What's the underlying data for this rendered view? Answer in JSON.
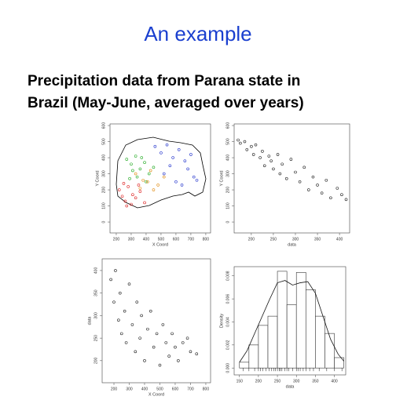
{
  "slide": {
    "title": "An example",
    "subtitle": [
      "Precipitation data from Parana state in",
      "Brazil (May-June, averaged over years)"
    ]
  },
  "chart_data": [
    {
      "type": "scatter",
      "xlabel": "X Coord",
      "ylabel": "Y Coord",
      "xlim": [
        158,
        832
      ],
      "ylim": [
        -68,
        610
      ],
      "xticks": [
        200,
        300,
        400,
        500,
        600,
        700,
        800
      ],
      "yticks": [
        0,
        100,
        200,
        300,
        400,
        500,
        600
      ],
      "series": [
        {
          "color": "#22aa22",
          "x": [
            270,
            300,
            330,
            360,
            390,
            420,
            450,
            290,
            340,
            400,
            310,
            370
          ],
          "y": [
            390,
            360,
            410,
            330,
            370,
            300,
            340,
            270,
            280,
            250,
            320,
            400
          ]
        },
        {
          "color": "#dd2222",
          "x": [
            220,
            240,
            260,
            280,
            300,
            330,
            360,
            390,
            250,
            310,
            270,
            350
          ],
          "y": [
            200,
            160,
            130,
            220,
            110,
            150,
            190,
            120,
            240,
            170,
            100,
            230
          ]
        },
        {
          "color": "#2233cc",
          "x": [
            460,
            500,
            540,
            580,
            620,
            660,
            700,
            740,
            520,
            600,
            680,
            560,
            640,
            720
          ],
          "y": [
            470,
            430,
            480,
            400,
            450,
            380,
            420,
            260,
            300,
            250,
            330,
            350,
            230,
            280
          ]
        },
        {
          "color": "#e08a10",
          "x": [
            330,
            380,
            430,
            480,
            520,
            360,
            450,
            410
          ],
          "y": [
            300,
            260,
            320,
            230,
            280,
            210,
            200,
            250
          ]
        }
      ]
    },
    {
      "type": "scatter",
      "xlabel": "data",
      "ylabel": "Y Coord",
      "xlim": [
        161,
        423
      ],
      "ylim": [
        -68,
        610
      ],
      "xticks": [
        200,
        250,
        300,
        350,
        400
      ],
      "yticks": [
        0,
        100,
        200,
        300,
        400,
        500,
        600
      ],
      "series": [
        {
          "color": "#222222",
          "x": [
            170,
            175,
            185,
            190,
            200,
            205,
            210,
            220,
            225,
            230,
            240,
            245,
            250,
            260,
            265,
            270,
            280,
            290,
            300,
            310,
            320,
            330,
            340,
            350,
            360,
            370,
            380,
            395,
            405,
            415
          ],
          "y": [
            510,
            490,
            500,
            450,
            470,
            420,
            480,
            400,
            440,
            350,
            410,
            380,
            330,
            420,
            300,
            360,
            270,
            390,
            310,
            250,
            340,
            200,
            280,
            230,
            180,
            260,
            150,
            210,
            170,
            140
          ]
        }
      ]
    },
    {
      "type": "scatter",
      "xlabel": "X Coord",
      "ylabel": "data",
      "xlim": [
        123,
        831
      ],
      "ylim": [
        151,
        426
      ],
      "xticks": [
        200,
        300,
        400,
        500,
        600,
        700,
        800
      ],
      "yticks": [
        200,
        250,
        300,
        350,
        400
      ],
      "series": [
        {
          "color": "#222222",
          "x": [
            180,
            200,
            210,
            230,
            240,
            250,
            270,
            280,
            300,
            320,
            340,
            350,
            370,
            380,
            400,
            420,
            440,
            460,
            480,
            500,
            520,
            540,
            560,
            580,
            600,
            620,
            650,
            680,
            700,
            740
          ],
          "y": [
            380,
            330,
            400,
            290,
            350,
            260,
            310,
            240,
            370,
            280,
            220,
            330,
            250,
            300,
            200,
            270,
            310,
            230,
            260,
            190,
            280,
            240,
            210,
            260,
            230,
            200,
            240,
            250,
            220,
            215
          ]
        }
      ]
    },
    {
      "type": "histogram",
      "xlabel": "data",
      "ylabel": "Density",
      "xlim": [
        136,
        430
      ],
      "ylim": [
        -0.0006,
        0.0088
      ],
      "xticks": [
        150,
        200,
        250,
        300,
        350,
        400
      ],
      "yticks": [
        {
          "value": 0,
          "label": "0.000"
        },
        {
          "value": 0.002,
          "label": "0.002"
        },
        {
          "value": 0.004,
          "label": "0.004"
        },
        {
          "value": 0.006,
          "label": "0.006"
        },
        {
          "value": 0.008,
          "label": "0.008"
        }
      ],
      "bins": [
        150,
        175,
        200,
        225,
        250,
        275,
        300,
        325,
        350,
        375,
        400,
        425
      ],
      "values": [
        0.0005,
        0.002,
        0.0037,
        0.0045,
        0.0084,
        0.0055,
        0.0083,
        0.0068,
        0.0045,
        0.003,
        0.0009
      ],
      "curve": {
        "x": [
          150,
          170,
          190,
          210,
          230,
          250,
          270,
          290,
          310,
          330,
          350,
          370,
          390,
          410,
          425
        ],
        "y": [
          0.0005,
          0.0015,
          0.003,
          0.0045,
          0.006,
          0.0074,
          0.0076,
          0.0072,
          0.0074,
          0.0075,
          0.0065,
          0.0045,
          0.0025,
          0.0012,
          0.0006
        ]
      },
      "rug": [
        160,
        175,
        190,
        200,
        205,
        212,
        220,
        228,
        235,
        240,
        245,
        250,
        255,
        258,
        262,
        270,
        275,
        280,
        290,
        300,
        305,
        310,
        318,
        325,
        335,
        345,
        360,
        380,
        400,
        420
      ]
    }
  ]
}
